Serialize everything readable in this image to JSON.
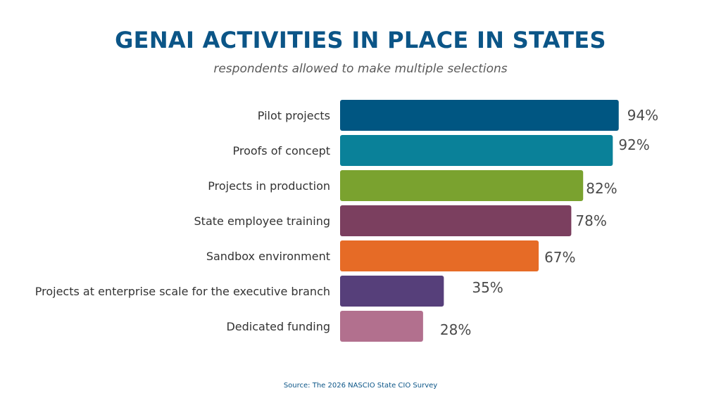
{
  "chart_data": {
    "type": "bar",
    "orientation": "horizontal",
    "title": "GENAI ACTIVITIES IN PLACE IN STATES",
    "subtitle": "respondents allowed to make multiple selections",
    "categories": [
      "Pilot projects",
      "Proofs of concept",
      "Projects in production",
      "State employee training",
      "Sandbox environment",
      "Projects at enterprise scale for the executive branch",
      "Dedicated funding"
    ],
    "values": [
      94,
      92,
      82,
      78,
      67,
      35,
      28
    ],
    "value_labels": [
      "94%",
      "92%",
      "82%",
      "78%",
      "67%",
      "35%",
      "28%"
    ],
    "unit": "%",
    "xlim": [
      0,
      100
    ],
    "colors": [
      "#005682",
      "#0a8199",
      "#7aa22f",
      "#7b3f5f",
      "#e66b26",
      "#563f7a",
      "#b2708e"
    ],
    "grid": false,
    "legend": "none"
  },
  "source": "Source: The 2026 NASCIO State CIO Survey"
}
